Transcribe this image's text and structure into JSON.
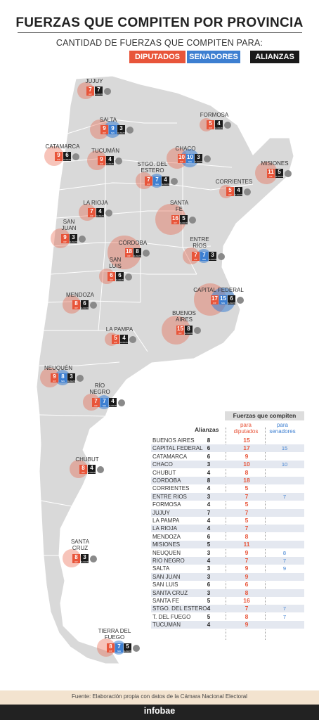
{
  "header": {
    "title": "FUERZAS QUE COMPITEN POR PROVINCIA",
    "subtitle": "CANTIDAD DE FUERZAS QUE COMPITEN PARA:",
    "legend": [
      {
        "label": "DIPUTADOS",
        "color": "#e8553a"
      },
      {
        "label": "SENADORES",
        "color": "#3d7fd1"
      },
      {
        "label": "ALIANZAS",
        "color": "#1a1a1a"
      }
    ]
  },
  "colors": {
    "diputados": "#e8553a",
    "senadores": "#3d7fd1",
    "alianzas": "#1a1a1a",
    "map": "#d9d9d9",
    "border": "#ffffff"
  },
  "map_labels": {
    "dip_small": "DIP",
    "sen_small": "SEN",
    "ali_small": "ALIANZAS"
  },
  "provinces": [
    {
      "name": "JUJUY",
      "dip": 7,
      "sen": null,
      "ali": 7
    },
    {
      "name": "SALTA",
      "dip": 9,
      "sen": 9,
      "ali": 3
    },
    {
      "name": "FORMOSA",
      "dip": 5,
      "sen": null,
      "ali": 4
    },
    {
      "name": "CATAMARCA",
      "dip": 9,
      "sen": null,
      "ali": 6
    },
    {
      "name": "TUCUMÁN",
      "dip": 9,
      "sen": null,
      "ali": 4
    },
    {
      "name": "CHACO",
      "dip": 10,
      "sen": 10,
      "ali": 3
    },
    {
      "name": "MISIONES",
      "dip": 11,
      "sen": null,
      "ali": 5
    },
    {
      "name": "STGO. DEL ESTERO",
      "dip": 7,
      "sen": 7,
      "ali": 4
    },
    {
      "name": "CORRIENTES",
      "dip": 5,
      "sen": null,
      "ali": 4
    },
    {
      "name": "LA RIOJA",
      "dip": 7,
      "sen": null,
      "ali": 4
    },
    {
      "name": "SANTA FE",
      "dip": 16,
      "sen": null,
      "ali": 5
    },
    {
      "name": "SAN JUAN",
      "dip": 9,
      "sen": null,
      "ali": 3
    },
    {
      "name": "CÓRDOBA",
      "dip": 18,
      "sen": null,
      "ali": 8
    },
    {
      "name": "ENTRE RÍOS",
      "dip": 7,
      "sen": 7,
      "ali": 3
    },
    {
      "name": "SAN LUIS",
      "dip": 6,
      "sen": null,
      "ali": 6
    },
    {
      "name": "CAPITAL FEDERAL",
      "dip": 17,
      "sen": 15,
      "ali": 6
    },
    {
      "name": "MENDOZA",
      "dip": 8,
      "sen": null,
      "ali": 6
    },
    {
      "name": "BUENOS AIRES",
      "dip": 15,
      "sen": null,
      "ali": 8
    },
    {
      "name": "LA PAMPA",
      "dip": 5,
      "sen": null,
      "ali": 4
    },
    {
      "name": "NEUQUÉN",
      "dip": 9,
      "sen": 8,
      "ali": 3
    },
    {
      "name": "RÍO NEGRO",
      "dip": 7,
      "sen": 7,
      "ali": 4
    },
    {
      "name": "CHUBUT",
      "dip": 8,
      "sen": null,
      "ali": 4
    },
    {
      "name": "SANTA CRUZ",
      "dip": 8,
      "sen": null,
      "ali": 3
    },
    {
      "name": "TIERRA DEL FUEGO",
      "dip": 8,
      "sen": 7,
      "ali": 5
    }
  ],
  "table": {
    "title": "Fuerzas que compiten",
    "col_alianzas": "Alianzas",
    "col_diputados": "para diputados",
    "col_senadores": "para senadores",
    "rows": [
      {
        "name": "BUENOS AIRES",
        "ali": "8",
        "dip": "15",
        "sen": ""
      },
      {
        "name": "CAPITAL FEDERAL",
        "ali": "6",
        "dip": "17",
        "sen": "15"
      },
      {
        "name": "CATAMARCA",
        "ali": "6",
        "dip": "9",
        "sen": ""
      },
      {
        "name": "CHACO",
        "ali": "3",
        "dip": "10",
        "sen": "10"
      },
      {
        "name": "CHUBUT",
        "ali": "4",
        "dip": "8",
        "sen": ""
      },
      {
        "name": "CORDOBA",
        "ali": "8",
        "dip": "18",
        "sen": ""
      },
      {
        "name": "CORRIENTES",
        "ali": "4",
        "dip": "5",
        "sen": ""
      },
      {
        "name": "ENTRE RIOS",
        "ali": "3",
        "dip": "7",
        "sen": "7"
      },
      {
        "name": "FORMOSA",
        "ali": "4",
        "dip": "5",
        "sen": ""
      },
      {
        "name": "JUJUY",
        "ali": "7",
        "dip": "7",
        "sen": ""
      },
      {
        "name": "LA PAMPA",
        "ali": "4",
        "dip": "5",
        "sen": ""
      },
      {
        "name": "LA RIOJA",
        "ali": "4",
        "dip": "7",
        "sen": ""
      },
      {
        "name": "MENDOZA",
        "ali": "6",
        "dip": "8",
        "sen": ""
      },
      {
        "name": "MISIONES",
        "ali": "5",
        "dip": "11",
        "sen": ""
      },
      {
        "name": "NEUQUEN",
        "ali": "3",
        "dip": "9",
        "sen": "8"
      },
      {
        "name": "RIO NEGRO",
        "ali": "4",
        "dip": "7",
        "sen": "7"
      },
      {
        "name": "SALTA",
        "ali": "3",
        "dip": "9",
        "sen": "9"
      },
      {
        "name": "SAN JUAN",
        "ali": "3",
        "dip": "9",
        "sen": ""
      },
      {
        "name": "SAN LUIS",
        "ali": "6",
        "dip": "6",
        "sen": ""
      },
      {
        "name": "SANTA CRUZ",
        "ali": "3",
        "dip": "8",
        "sen": ""
      },
      {
        "name": "SANTA FE",
        "ali": "5",
        "dip": "16",
        "sen": ""
      },
      {
        "name": "STGO. DEL ESTERO",
        "ali": "4",
        "dip": "7",
        "sen": "7"
      },
      {
        "name": "T. DEL FUEGO",
        "ali": "5",
        "dip": "8",
        "sen": "7"
      },
      {
        "name": "TUCUMAN",
        "ali": "4",
        "dip": "9",
        "sen": ""
      }
    ]
  },
  "footer": {
    "source": "Fuente: Elaboración propia con datos de la Cámara Nacional Electoral",
    "logo": "infobae"
  }
}
